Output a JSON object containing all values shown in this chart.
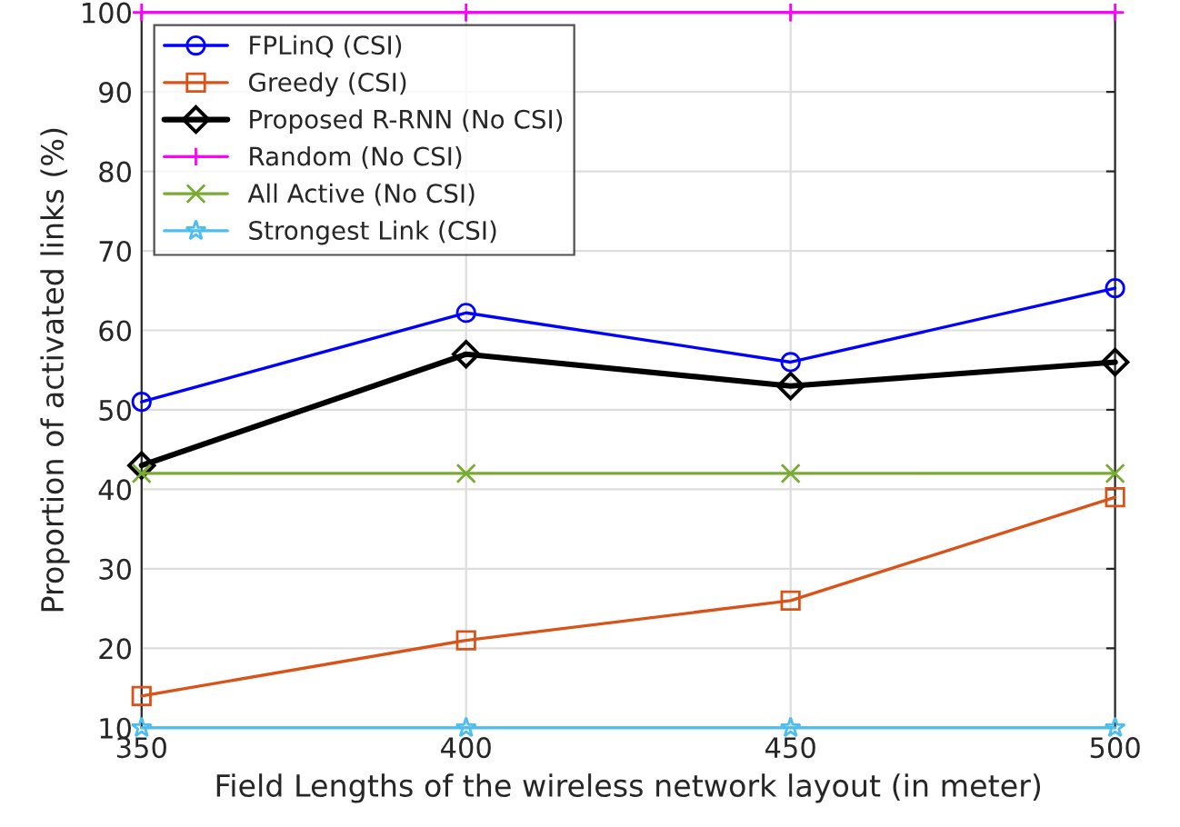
{
  "chart_data": {
    "type": "line",
    "xlabel": "Field Lengths of the wireless network layout (in meter)",
    "ylabel": "Proportion of activated links (%)",
    "x": [
      350,
      400,
      450,
      500
    ],
    "series": [
      {
        "name": "FPLinQ (CSI)",
        "color": "#0000ff",
        "marker": "circle",
        "values": [
          51,
          62.2,
          56,
          65.3
        ]
      },
      {
        "name": "Greedy (CSI)",
        "color": "#d95319",
        "marker": "square",
        "values": [
          14,
          21,
          26,
          39
        ]
      },
      {
        "name": "Proposed R-RNN (No CSI)",
        "color": "#000000",
        "marker": "diamond",
        "values": [
          43,
          57,
          53,
          56
        ]
      },
      {
        "name": "Random (No CSI)",
        "color": "#ff00ff",
        "marker": "plus",
        "values": [
          100,
          100,
          100,
          100
        ]
      },
      {
        "name": "All Active (No CSI)",
        "color": "#77ac30",
        "marker": "cross",
        "values": [
          42,
          42,
          42,
          42
        ]
      },
      {
        "name": "Strongest Link (CSI)",
        "color": "#4dbeee",
        "marker": "star",
        "values": [
          10,
          10,
          10,
          10
        ]
      }
    ],
    "xlim": [
      350,
      500
    ],
    "xticks": [
      350,
      400,
      450,
      500
    ],
    "ylim": [
      10,
      100
    ],
    "yticks": [
      10,
      20,
      30,
      40,
      50,
      60,
      70,
      80,
      90,
      100
    ],
    "grid": true,
    "legend": "top left",
    "line_style": "solid"
  }
}
